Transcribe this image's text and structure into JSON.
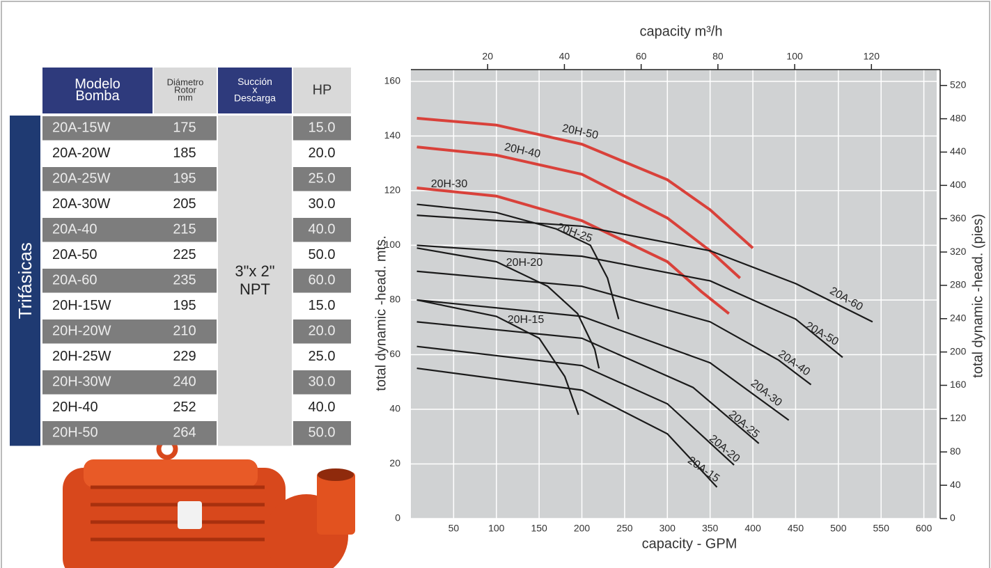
{
  "table": {
    "group": "Trifásicas",
    "header": [
      [
        "Modelo",
        "Bomba"
      ],
      [
        "Diámetro",
        "Rotor",
        "mm"
      ],
      [
        "Succión",
        "x",
        "Descarga"
      ],
      [
        "HP"
      ]
    ],
    "connection": [
      "3\"x 2\"",
      "NPT"
    ],
    "rows": [
      [
        "20A-15W",
        "175",
        "15.0"
      ],
      [
        "20A-20W",
        "185",
        "20.0"
      ],
      [
        "20A-25W",
        "195",
        "25.0"
      ],
      [
        "20A-30W",
        "205",
        "30.0"
      ],
      [
        "20A-40",
        "215",
        "40.0"
      ],
      [
        "20A-50",
        "225",
        "50.0"
      ],
      [
        "20A-60",
        "235",
        "60.0"
      ],
      [
        "20H-15W",
        "195",
        "15.0"
      ],
      [
        "20H-20W",
        "210",
        "20.0"
      ],
      [
        "20H-25W",
        "229",
        "25.0"
      ],
      [
        "20H-30W",
        "240",
        "30.0"
      ],
      [
        "20H-40",
        "252",
        "40.0"
      ],
      [
        "20H-50",
        "264",
        "50.0"
      ]
    ]
  },
  "chart_data": {
    "type": "line",
    "x_label": "capacity  - GPM",
    "x2_label": "capacity m³/h",
    "y_label": "total dynamic -head. mts.",
    "y2_label": "total dynamic -head. (pies)",
    "xlim": [
      0,
      615
    ],
    "xticks": [
      50,
      100,
      150,
      200,
      250,
      300,
      350,
      400,
      450,
      500,
      550,
      600
    ],
    "x2lim": [
      0,
      137
    ],
    "x2ticks": [
      20,
      40,
      60,
      80,
      100,
      120
    ],
    "ylim": [
      0,
      164.3
    ],
    "yticks": [
      0,
      20,
      40,
      60,
      80,
      100,
      120,
      140,
      160
    ],
    "y2lim": [
      0,
      539
    ],
    "y2ticks": [
      0,
      40,
      80,
      120,
      160,
      200,
      240,
      280,
      320,
      360,
      400,
      440,
      480,
      520
    ],
    "grid": true,
    "series": [
      {
        "name": "20H-50",
        "color": "#d9413a",
        "x": [
          7,
          100,
          200,
          300,
          350,
          400
        ],
        "values": [
          146.5,
          144,
          137,
          124,
          113,
          99
        ]
      },
      {
        "name": "20H-40",
        "color": "#d9413a",
        "x": [
          7,
          100,
          200,
          300,
          350,
          385
        ],
        "values": [
          136,
          133,
          126,
          110,
          98,
          88
        ]
      },
      {
        "name": "20H-30",
        "color": "#d9413a",
        "x": [
          7,
          100,
          200,
          300,
          340,
          372
        ],
        "values": [
          121,
          118,
          109,
          94,
          83,
          75
        ]
      },
      {
        "name": "20H-25",
        "color": "#1a1a1a",
        "x": [
          7,
          100,
          170,
          210,
          230,
          243
        ],
        "values": [
          115,
          112,
          106,
          100,
          88,
          73
        ]
      },
      {
        "name": "20H-20",
        "color": "#1a1a1a",
        "x": [
          7,
          100,
          160,
          195,
          215,
          220
        ],
        "values": [
          99,
          94,
          85,
          75,
          62,
          55
        ]
      },
      {
        "name": "20H-15",
        "color": "#1a1a1a",
        "x": [
          7,
          100,
          150,
          180,
          196
        ],
        "values": [
          80,
          74,
          66,
          52,
          38
        ]
      },
      {
        "name": "20A-60",
        "color": "#1a1a1a",
        "x": [
          7,
          200,
          350,
          450,
          540
        ],
        "values": [
          111,
          107,
          98,
          86,
          72
        ]
      },
      {
        "name": "20A-50",
        "color": "#1a1a1a",
        "x": [
          7,
          200,
          350,
          450,
          505
        ],
        "values": [
          100,
          96,
          87,
          73,
          59
        ]
      },
      {
        "name": "20A-40",
        "color": "#1a1a1a",
        "x": [
          7,
          200,
          350,
          430,
          468
        ],
        "values": [
          90.5,
          85,
          72,
          58,
          49
        ]
      },
      {
        "name": "20A-30",
        "color": "#1a1a1a",
        "x": [
          7,
          200,
          350,
          442
        ],
        "values": [
          80,
          74,
          57,
          36
        ]
      },
      {
        "name": "20A-25",
        "color": "#1a1a1a",
        "x": [
          7,
          200,
          330,
          407
        ],
        "values": [
          72,
          66,
          48,
          27.5
        ]
      },
      {
        "name": "20A-20",
        "color": "#1a1a1a",
        "x": [
          7,
          200,
          300,
          378
        ],
        "values": [
          63,
          56,
          42,
          19.6
        ]
      },
      {
        "name": "20A-15",
        "color": "#1a1a1a",
        "x": [
          7,
          200,
          300,
          358
        ],
        "values": [
          55,
          47,
          31,
          11.5
        ]
      }
    ]
  }
}
